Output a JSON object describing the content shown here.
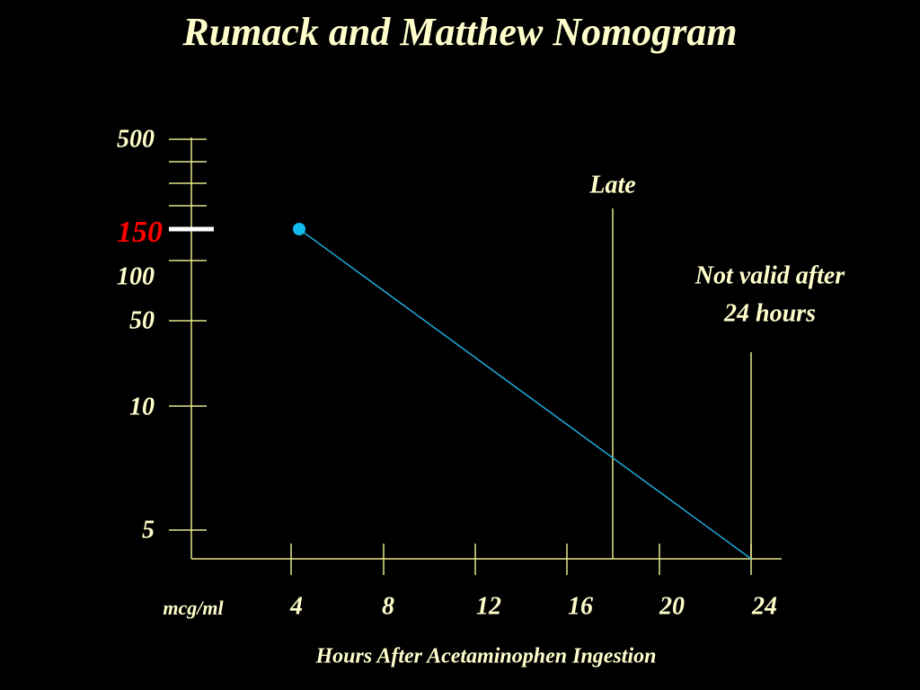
{
  "title": "Rumack and Matthew Nomogram",
  "y_axis": {
    "labels": [
      "500",
      "150",
      "100",
      "50",
      "10",
      "5"
    ]
  },
  "x_axis": {
    "unit_label": "mcg/ml",
    "labels": [
      "4",
      "8",
      "12",
      "16",
      "20",
      "24"
    ],
    "title": "Hours After Acetaminophen Ingestion"
  },
  "annotations": {
    "late": "Late",
    "not_valid": [
      "Not valid after",
      "24 hours"
    ]
  }
}
